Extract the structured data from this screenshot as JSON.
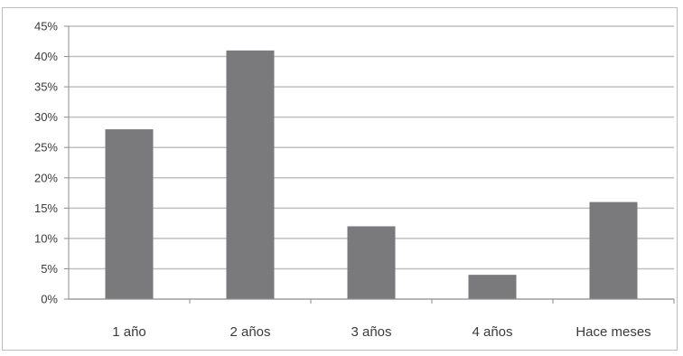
{
  "chart_data": {
    "type": "bar",
    "categories": [
      "1 año",
      "2 años",
      "3 años",
      "4 años",
      "Hace meses"
    ],
    "values": [
      28,
      41,
      12,
      4,
      16
    ],
    "ylim": [
      0,
      45
    ],
    "yticks": [
      "0%",
      "5%",
      "10%",
      "15%",
      "20%",
      "25%",
      "30%",
      "35%",
      "40%",
      "45%"
    ],
    "ytick_values": [
      0,
      5,
      10,
      15,
      20,
      25,
      30,
      35,
      40,
      45
    ],
    "grid": true,
    "title": "",
    "xlabel": "",
    "ylabel": ""
  },
  "colors": {
    "bar": "#7a7a7c",
    "grid": "#bfbfbf",
    "axis": "#8c8c8c"
  }
}
